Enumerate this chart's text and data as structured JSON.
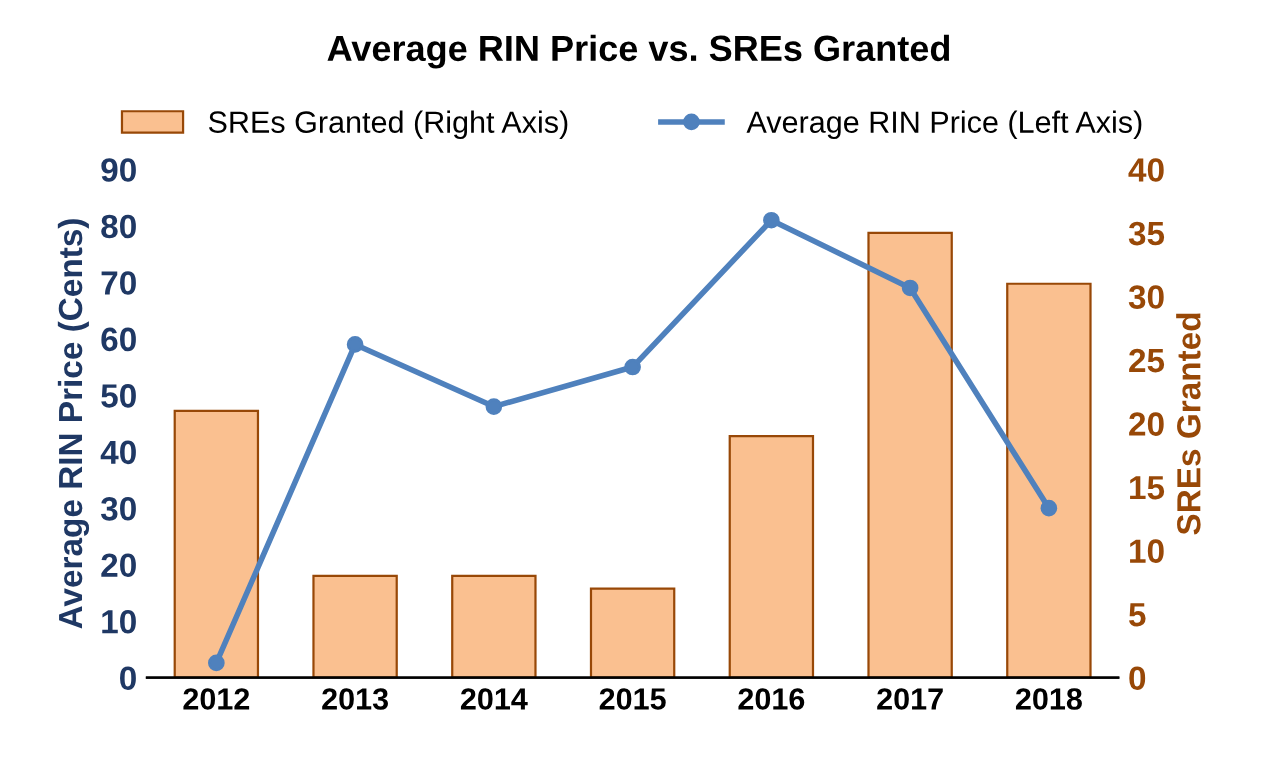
{
  "chart_data": {
    "type": "bar",
    "title": "Average RIN Price vs. SREs Granted",
    "ylabel": "Average RIN Price (Cents)",
    "y2label": "SREs Granted",
    "categories": [
      "2012",
      "2013",
      "2014",
      "2015",
      "2016",
      "2017",
      "2018"
    ],
    "series": [
      {
        "name": "SREs Granted (Right Axis)",
        "axis": "y2",
        "color": "#fac090",
        "values": [
          21,
          8,
          8,
          7,
          19,
          35,
          31
        ]
      },
      {
        "name": "Average RIN Price (Left Axis)",
        "type": "line",
        "color": "#4f81bd",
        "values": [
          2.6,
          59,
          48,
          55,
          81,
          69,
          30
        ]
      }
    ],
    "ylim": [
      0,
      90
    ],
    "yticks": [
      0,
      10,
      20,
      30,
      40,
      50,
      60,
      70,
      80,
      90
    ],
    "y2lim": [
      0,
      40
    ],
    "y2ticks": [
      0,
      5,
      10,
      15,
      20,
      25,
      30,
      35,
      40
    ],
    "marker": "circle",
    "grid": false,
    "legend": "top"
  }
}
